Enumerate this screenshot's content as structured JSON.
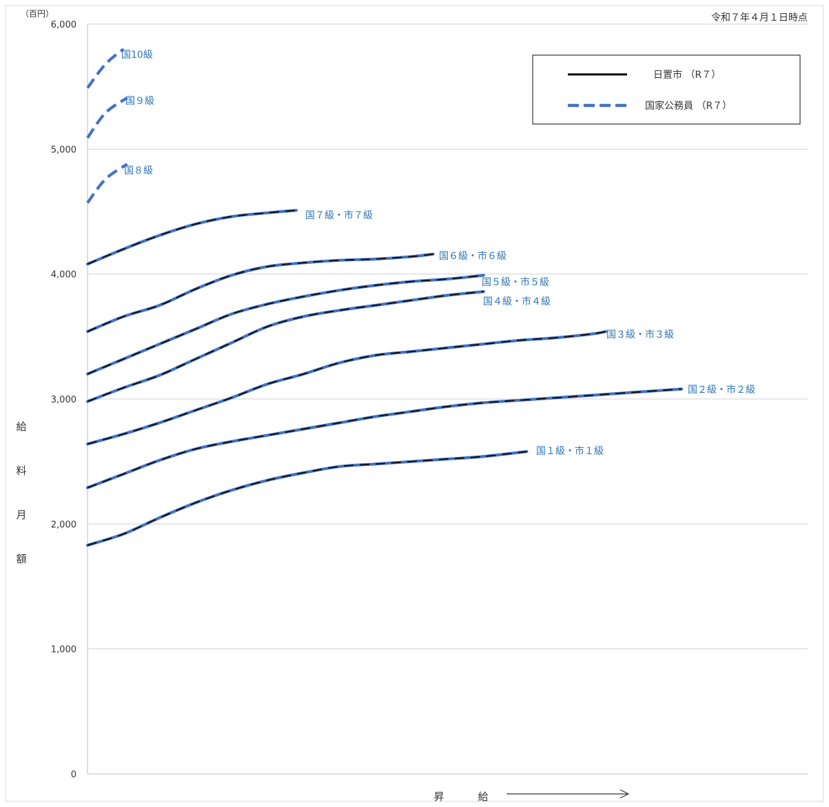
{
  "chart_data": {
    "type": "line",
    "title": "令和７年４月１日時点",
    "y_unit": "（百円）",
    "ylabel": "給料月額",
    "xlabel": "昇給",
    "ylim": [
      0,
      6000
    ],
    "xlim": [
      0,
      100
    ],
    "y_ticks": [
      "0",
      "1,000",
      "2,000",
      "3,000",
      "4,000",
      "5,000",
      "6,000"
    ],
    "grid": true,
    "legend_position": "top-right",
    "legend": [
      {
        "name": "日置市 （R７）",
        "color": "#000000",
        "style": "solid"
      },
      {
        "name": "国家公務員 （R７）",
        "color": "#4472c4",
        "style": "dashed"
      }
    ],
    "series": [
      {
        "name": "国10級",
        "city": false,
        "x": [
          0,
          2.5,
          5
        ],
        "y": [
          5490,
          5680,
          5800
        ]
      },
      {
        "name": "国９級",
        "city": false,
        "x": [
          0,
          2.5,
          5.5
        ],
        "y": [
          5090,
          5290,
          5410
        ]
      },
      {
        "name": "国８級",
        "city": false,
        "x": [
          0,
          2.5,
          5.5
        ],
        "y": [
          4570,
          4760,
          4880
        ]
      },
      {
        "name": "国７級・市７級",
        "city": true,
        "x": [
          0,
          5,
          10,
          15,
          20,
          25,
          29
        ],
        "y": [
          4080,
          4200,
          4310,
          4400,
          4460,
          4490,
          4510
        ]
      },
      {
        "name": "国６級・市６級",
        "city": true,
        "x": [
          0,
          5,
          10,
          15,
          20,
          25,
          30,
          35,
          40,
          45,
          48
        ],
        "y": [
          3540,
          3660,
          3750,
          3880,
          3990,
          4060,
          4090,
          4110,
          4120,
          4140,
          4160
        ]
      },
      {
        "name": "国５級・市５級",
        "city": true,
        "x": [
          0,
          5,
          10,
          15,
          20,
          25,
          30,
          35,
          40,
          45,
          50,
          55
        ],
        "y": [
          3200,
          3320,
          3440,
          3560,
          3680,
          3760,
          3820,
          3870,
          3910,
          3940,
          3960,
          3990
        ]
      },
      {
        "name": "国４級・市４級",
        "city": true,
        "x": [
          0,
          5,
          10,
          15,
          20,
          25,
          30,
          35,
          40,
          45,
          50,
          55
        ],
        "y": [
          2980,
          3090,
          3190,
          3320,
          3450,
          3580,
          3660,
          3710,
          3750,
          3790,
          3830,
          3860
        ]
      },
      {
        "name": "国３級・市３級",
        "city": true,
        "x": [
          0,
          5,
          10,
          15,
          20,
          25,
          30,
          35,
          40,
          45,
          50,
          55,
          60,
          65,
          70,
          72
        ],
        "y": [
          2640,
          2720,
          2810,
          2910,
          3010,
          3120,
          3200,
          3290,
          3350,
          3380,
          3410,
          3440,
          3470,
          3490,
          3520,
          3540
        ]
      },
      {
        "name": "国２級・市２級",
        "city": true,
        "x": [
          0,
          5,
          10,
          15,
          20,
          25,
          30,
          35,
          40,
          45,
          50,
          55,
          60,
          65,
          70,
          75,
          80,
          82.5
        ],
        "y": [
          2290,
          2400,
          2510,
          2600,
          2660,
          2710,
          2760,
          2810,
          2860,
          2900,
          2940,
          2970,
          2990,
          3010,
          3030,
          3050,
          3070,
          3080
        ]
      },
      {
        "name": "国１級・市１級",
        "city": true,
        "x": [
          0,
          5,
          10,
          15,
          20,
          25,
          30,
          35,
          40,
          45,
          50,
          55,
          61
        ],
        "y": [
          1830,
          1920,
          2050,
          2170,
          2270,
          2350,
          2410,
          2460,
          2480,
          2500,
          2520,
          2540,
          2580
        ]
      }
    ]
  }
}
